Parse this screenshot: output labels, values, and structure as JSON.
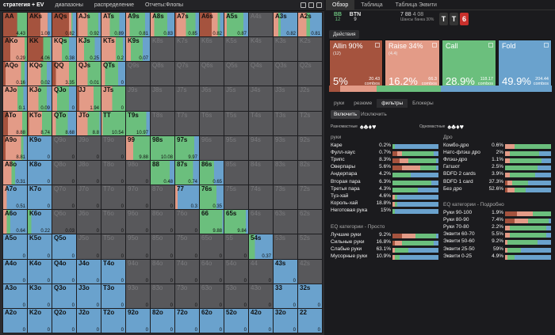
{
  "toolbar": {
    "strategy": "стратегия + EV",
    "ranges": "диапазоны",
    "distribution": "распределение",
    "reports": "Отчеты:Флопы"
  },
  "colors": {
    "allin": "#a5533e",
    "raise": "#e39b87",
    "call": "#6bbf7d",
    "fold": "#6aa2cd",
    "empty": "#58585b"
  },
  "grid": {
    "ranks": [
      "A",
      "K",
      "Q",
      "J",
      "T",
      "9",
      "8",
      "7",
      "6",
      "5",
      "4",
      "3",
      "2"
    ],
    "cells": [
      [
        "AA|0.59|0|0.41|0|4.43",
        "AKs|0.53|0.31|0|0.16|1.08",
        "AQs|0.7|0.1|0.05|0.15|0.82",
        "AJs|0.05|0.4|0.45|0.1|0.92",
        "ATs|0|0.35|0.4|0.25|0.89",
        "A9s|0|0.15|0.65|0.2|0.81",
        "A8s|0|0.15|0.55|0.3|0.83",
        "A7s|0.05|0.4|0.4|0.15|0.85",
        "A6s|0.5|0.25|0.1|0.15|0.82",
        "A5s|0|0.1|0.7|0.2|0.87",
        "A4s|0|0|0|0|",
        "A3s|0|0.2|0.1|0.7|0.82",
        "A2s|0|0.35|0.15|0.5|0.81"
      ],
      [
        "AKo|0.3|0.6|0.1|0|0.29",
        "KK|0.65|0|0.3|0.05|4.06",
        "KQs|0|0.4|0.3|0.3|0.38",
        "KJs|0|0.3|0.45|0.25|0.25",
        "KTs|0|0.6|0.3|0.1|0.2",
        "K9s|0|0.2|0.5|0.3|0.07",
        "K8s|0|0|0|0|",
        "K7s|0|0|0|0|",
        "K6s|0|0|0|0|",
        "K5s|0|0|0|0|",
        "K4s|0|0|0|0|",
        "K3s|0|0|0|0|",
        "K2s|0|0|0|0|"
      ],
      [
        "AQo|0.1|0.65|0.15|0.1|0.16",
        "KQo|0|0.55|0.25|0.2|0.02",
        "QQ|0.15|0.55|0.3|0|3.35",
        "QJs|0|0.45|0.55|0|0.01",
        "QTs|0|0.15|0.55|0.3|0",
        "Q9s|0|0|0|0|",
        "Q8s|0|0|0|0|",
        "Q7s|0|0|0|0|",
        "Q6s|0|0|0|0|",
        "Q5s|0|0|0|0|",
        "Q4s|0|0|0|0|",
        "Q3s|0|0|0|0|",
        "Q2s|0|0|0|0|"
      ],
      [
        "AJo|0|0.6|0.25|0.15|0.1",
        "KJo|0|0.45|0.35|0.2|0.09",
        "QJo|0|0.2|0.5|0.3|0",
        "JJ|0.1|0.6|0.3|0|1.94",
        "JTs|0|0.45|0.55|0|0",
        "J9s|0|0|0|0|",
        "J8s|0|0|0|0|",
        "J7s|0|0|0|0|",
        "J6s|0|0|0|0|",
        "J5s|0|0|0|0|",
        "J4s|0|0|0|0|",
        "J3s|0|0|0|0|",
        "J2s|0|0|0|0|"
      ],
      [
        "ATo|0.2|0.6|0.2|0|8.88",
        "KTo|0.05|0.55|0.4|0|8.74",
        "QTo|0|0.15|0.5|0.35|8.68",
        "JTo|0|0.45|0.5|0.05|8.8",
        "TT|0|0.05|0.95|0|10.54",
        "T9s|0|0|0.85|0.15|10.97",
        "T8s|0|0|0|0|",
        "T7s|0|0|0|0|",
        "T6s|0|0|0|0|",
        "T5s|0|0|0|0|",
        "T4s|0|0|0|0|",
        "T3s|0|0|0|0|",
        "T2s|0|0|0|0|"
      ],
      [
        "A9o|0.1|0.65|0.1|0.15|8.81",
        "K9o|0|0|0|1|0",
        "Q9o|0|0|0|0|0",
        "J9o|0|0|0|0|0",
        "T9o|0|0|0|0|0",
        "99|0|0.3|0.7|0|9.88",
        "98s|0|0|1|0|10.08",
        "97s|0|0|0.8|0.2|9.97",
        "96s|0|0|0|0|",
        "95s|0|0|0|0|",
        "94s|0|0|0|0|",
        "93s|0|0|0|0|",
        "92s|0|0|0|0|"
      ],
      [
        "A8o|0|0.35|0.15|0.5|0.31",
        "K8o|0|0|0|1|0",
        "Q8o|0|0|0|0|0",
        "J8o|0|0|0|0|0",
        "T8o|0|0|0|0|0",
        "98o|0|0|0|0|0",
        "88|0|0|0.8|0.2|0.48",
        "87s|0|0|0.75|0.25|0.74",
        "86s|0|0|0.6|0.4|0.65",
        "85s|0|0|0|0|",
        "84s|0|0|0|0|",
        "83s|0|0|0|0|",
        "82s|0|0|0|0|"
      ],
      [
        "A7o|0|0.15|0|0.85|0.51",
        "K7o|0|0|0|1|0",
        "Q7o|0|0|0|0|0",
        "J7o|0|0|0|0|0",
        "T7o|0|0|0|0|0",
        "97o|0|0|0|0|0",
        "87o|0|0|0|0|0",
        "77|0|0.1|0|0.9|0.3",
        "76s|0|0|0.7|0.3|0.35",
        "75s|0|0|0|0|",
        "74s|0|0|0|0|",
        "73s|0|0|0|0|",
        "72s|0|0|0|0|"
      ],
      [
        "A6o|0|0.15|0.15|0.7|0.64",
        "K6o|0|0|0.15|0.85|0.22",
        "Q6o|0|0|0|0|0.03",
        "J6o|0|0|0|0|0",
        "T6o|0|0|0|0|0",
        "96o|0|0|0|0|0",
        "86o|0|0|0|0|0",
        "76o|0|0|0|0|0",
        "66|0|0|0.95|0.05|9.88",
        "65s|0|0|0.9|0.1|9.84",
        "64s|0|0|0|0|",
        "63s|0|0|0|0|",
        "62s|0|0|0|0|"
      ],
      [
        "A5o|0|0|0|1|0",
        "K5o|0|0|0|1|0",
        "Q5o|0|0|0|1|0",
        "J5o|0|0|0|0|0",
        "T5o|0|0|0|0|0",
        "95o|0|0|0|0|0",
        "85o|0|0|0|0|0",
        "75o|0|0|0|0|0",
        "65o|0|0|0|0|0",
        "55|0|0|0|0|0",
        "54s|0|0|0.25|0.75|0.37",
        "53s|0|0|0|0|",
        "52s|0|0|0|0|"
      ],
      [
        "A4o|0|0|0|1|0",
        "K4o|0|0|0|1|0",
        "Q4o|0|0|0|1|0",
        "J4o|0|0|0|1|0",
        "T4o|0|0|0|1|0",
        "94o|0|0|0|0|0",
        "84o|0|0|0|0|0",
        "74o|0|0|0|0|0",
        "64o|0|0|0|0|0",
        "54o|0|0|0|0|0",
        "44|0|0|0|0|0",
        "43s|0|0|0|1|0",
        "42s|0|0|0|0|"
      ],
      [
        "A3o|0|0|0|1|0",
        "K3o|0|0|0|1|0",
        "Q3o|0|0|0|1|0",
        "J3o|0|0|0|1|0",
        "T3o|0|0|0|1|0",
        "93o|0|0|0|0|0",
        "83o|0|0|0|0|0",
        "73o|0|0|0|0|0",
        "63o|0|0|0|0|0",
        "53o|0|0|0|0|0",
        "43o|0|0|0|0|0",
        "33|0|0|0|1|0",
        "32s|0|0|0|1|0"
      ],
      [
        "A2o|0|0|0|1|0",
        "K2o|0|0|0|1|0",
        "Q2o|0|0|0|1|0",
        "J2o|0|0|0|1|0",
        "T2o|0|0|0|1|0",
        "92o|0|0|0|1|0",
        "82o|0|0|0|1|0",
        "72o|0|0|0|1|0",
        "62o|0|0|0|1|0",
        "52o|0|0|0|1|0",
        "42o|0|0|0|1|0",
        "32o|0|0|0|1|0",
        "22|0|0|0|1|0"
      ]
    ]
  },
  "right": {
    "tabs": [
      "Обзор",
      "Таблица",
      "Таблица Эквити"
    ],
    "bb": "BB",
    "bb_stack": "12",
    "btn": "BTN",
    "btn_stack": "9",
    "pot": "7 88",
    "pot2": "4 08",
    "pot_note": "Шансы банка",
    "pot_pct": "30%",
    "board": [
      {
        "r": "T",
        "c": "#333"
      },
      {
        "r": "T",
        "c": "#333"
      },
      {
        "r": "6",
        "c": "#c9302c"
      }
    ],
    "actions_label": "Действия",
    "cards": [
      {
        "name": "Allin 90%",
        "sub": "(12)",
        "pct": "5%",
        "combos": "20.43",
        "cl": "combos",
        "color": "#a5533e"
      },
      {
        "name": "Raise 34%",
        "sub": "(4.4)",
        "pct": "16.2%",
        "combos": "66.3",
        "cl": "combos",
        "color": "#e39b87"
      },
      {
        "name": "Call",
        "sub": "",
        "pct": "28.9%",
        "combos": "118.17",
        "cl": "combos",
        "color": "#6bbf7d"
      },
      {
        "name": "Fold",
        "sub": "",
        "pct": "49.9%",
        "combos": "204.44",
        "cl": "combos",
        "color": "#6aa2cd"
      }
    ],
    "ftabs": [
      "руки",
      "резюме",
      "фильтры",
      "Блокеры"
    ],
    "include": "Включить",
    "exclude": "Исключить",
    "suits_diff": "Разномастные",
    "suits_same": "Одномастные",
    "sections": {
      "hands": "руки",
      "draws": "Дро",
      "eq_simple": "EQ категории - Просто",
      "eq_detail": "EQ категории - Подробно"
    },
    "hands": [
      {
        "n": "Каре",
        "v": "0.2%",
        "s": [
          0,
          0,
          0.05,
          0.95
        ]
      },
      {
        "n": "Фулл-хаус",
        "v": "0.7%",
        "s": [
          0.1,
          0.1,
          0.7,
          0.1
        ]
      },
      {
        "n": "Трипс",
        "v": "8.3%",
        "s": [
          0.15,
          0.2,
          0.6,
          0.05
        ]
      },
      {
        "n": "Оверпары",
        "v": "5.6%",
        "s": [
          0.2,
          0.4,
          0.35,
          0.05
        ]
      },
      {
        "n": "Андерпара",
        "v": "4.2%",
        "s": [
          0,
          0,
          0.4,
          0.6
        ]
      },
      {
        "n": "Вторая пара",
        "v": "6.3%",
        "s": [
          0,
          0,
          0.85,
          0.15
        ]
      },
      {
        "n": "Третья пара",
        "v": "4.3%",
        "s": [
          0,
          0,
          0.55,
          0.45
        ]
      },
      {
        "n": "Туз-хай",
        "v": "4.6%",
        "s": [
          0,
          0.05,
          0.05,
          0.9
        ]
      },
      {
        "n": "Король-хай",
        "v": "18.8%",
        "s": [
          0,
          0.05,
          0.05,
          0.9
        ]
      },
      {
        "n": "Неготовая рука",
        "v": "15%",
        "s": [
          0,
          0,
          0.05,
          0.95
        ]
      }
    ],
    "draws": [
      {
        "n": "Комбо-дро",
        "v": "0.6%",
        "s": [
          0,
          0.2,
          0.8,
          0
        ]
      },
      {
        "n": "Натс-флэш дро",
        "v": "2%",
        "s": [
          0,
          0.1,
          0.65,
          0.25
        ]
      },
      {
        "n": "Флэш-дро",
        "v": "1.1%",
        "s": [
          0,
          0.1,
          0.7,
          0.2
        ]
      },
      {
        "n": "Гатшот",
        "v": "2.5%",
        "s": [
          0,
          0,
          0.7,
          0.3
        ]
      },
      {
        "n": "BDFD 2 cards",
        "v": "3.9%",
        "s": [
          0,
          0.1,
          0.55,
          0.35
        ]
      },
      {
        "n": "BDFD 1 card",
        "v": "37.3%",
        "s": [
          0.05,
          0.1,
          0.35,
          0.5
        ]
      },
      {
        "n": "Без дро",
        "v": "52.6%",
        "s": [
          0.05,
          0.15,
          0.25,
          0.55
        ]
      }
    ],
    "eq_simple": [
      {
        "n": "Лучшие руки",
        "v": "9.2%",
        "s": [
          0.2,
          0.3,
          0.45,
          0.05
        ]
      },
      {
        "n": "Сильные руки",
        "v": "16.8%",
        "s": [
          0.05,
          0.15,
          0.7,
          0.1
        ]
      },
      {
        "n": "Слабые руки",
        "v": "63.1%",
        "s": [
          0,
          0.05,
          0.3,
          0.65
        ]
      },
      {
        "n": "Мусорные руки",
        "v": "10.9%",
        "s": [
          0,
          0.05,
          0.1,
          0.85
        ]
      }
    ],
    "eq_detail": [
      {
        "n": "Руки 90-100",
        "v": "1.9%",
        "s": [
          0.25,
          0.35,
          0.4,
          0
        ]
      },
      {
        "n": "Руки 80-90",
        "v": "7.4%",
        "s": [
          0.2,
          0.3,
          0.45,
          0.05
        ]
      },
      {
        "n": "Руки 70-80",
        "v": "2.2%",
        "s": [
          0,
          0.1,
          0.8,
          0.1
        ]
      },
      {
        "n": "Эквити 60-70",
        "v": "5.5%",
        "s": [
          0,
          0.1,
          0.8,
          0.1
        ]
      },
      {
        "n": "Эквити 50-60",
        "v": "9.2%",
        "s": [
          0,
          0.05,
          0.65,
          0.3
        ]
      },
      {
        "n": "Эквити 25-50",
        "v": "59%",
        "s": [
          0,
          0.05,
          0.3,
          0.65
        ]
      },
      {
        "n": "Эквити 0-25",
        "v": "4.9%",
        "s": [
          0,
          0.05,
          0.15,
          0.8
        ]
      }
    ]
  }
}
